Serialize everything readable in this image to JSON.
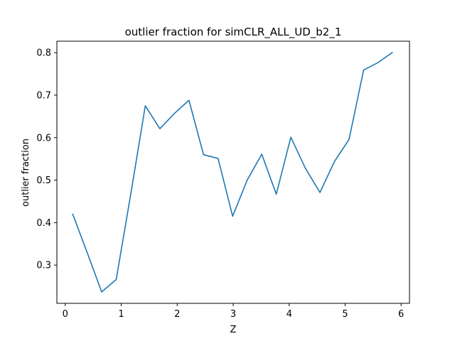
{
  "chart_data": {
    "type": "line",
    "title": "outlier fraction for simCLR_ALL_UD_b2_1",
    "xlabel": "Z",
    "ylabel": "outlier fraction",
    "xlim": [
      -0.15,
      6.15
    ],
    "ylim": [
      0.21,
      0.827
    ],
    "xticks": [
      0,
      1,
      2,
      3,
      4,
      5,
      6
    ],
    "yticks": [
      0.3,
      0.4,
      0.5,
      0.6,
      0.7,
      0.8
    ],
    "grid": false,
    "legend": "none",
    "series": [
      {
        "color": "#1f77b4",
        "x": [
          0.13,
          0.39,
          0.65,
          0.91,
          1.17,
          1.43,
          1.69,
          1.95,
          2.21,
          2.47,
          2.73,
          2.99,
          3.25,
          3.51,
          3.77,
          4.03,
          4.29,
          4.55,
          4.81,
          5.07,
          5.33,
          5.59,
          5.85
        ],
        "y": [
          0.421,
          0.33,
          0.237,
          0.266,
          0.467,
          0.675,
          0.621,
          0.657,
          0.688,
          0.56,
          0.551,
          0.415,
          0.5,
          0.561,
          0.467,
          0.601,
          0.528,
          0.471,
          0.544,
          0.596,
          0.759,
          0.777,
          0.801
        ]
      }
    ]
  }
}
